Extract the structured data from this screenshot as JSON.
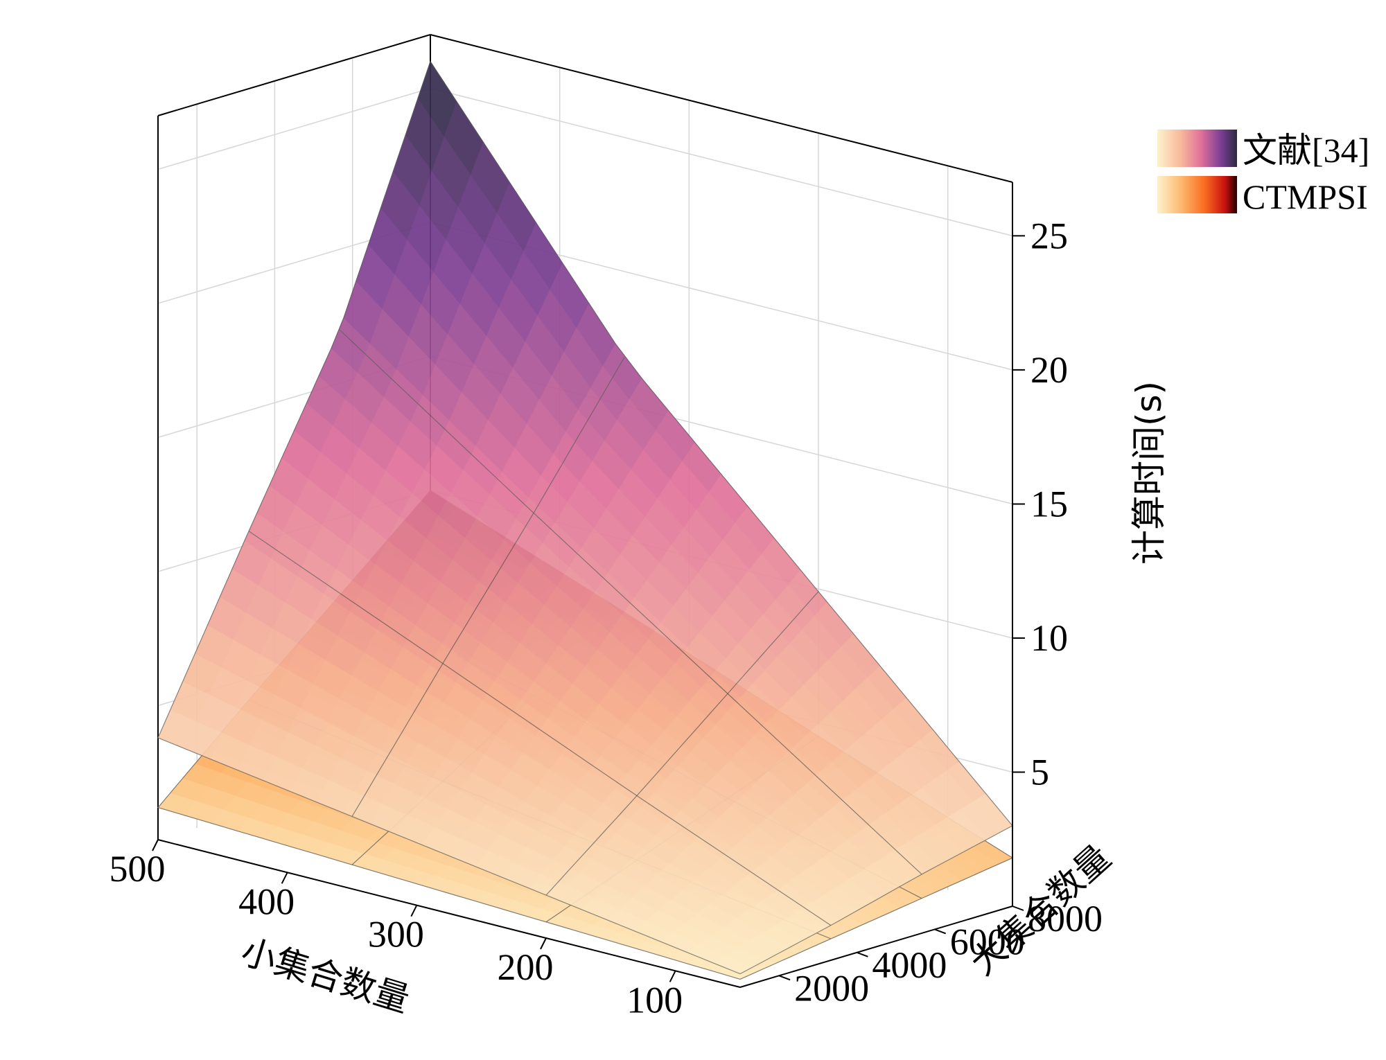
{
  "chart_data": {
    "type": "surface3d",
    "title": "",
    "x_axis": {
      "label": "小集合数量",
      "ticks": [
        "500",
        "400",
        "300",
        "200",
        "100"
      ],
      "tick_values": [
        500,
        400,
        300,
        200,
        100
      ],
      "range": [
        50,
        500
      ]
    },
    "y_axis": {
      "label": "大集合数量",
      "ticks": [
        "2000",
        "4000",
        "6000",
        "8000"
      ],
      "tick_values": [
        2000,
        4000,
        6000,
        8000
      ],
      "range": [
        1000,
        8000
      ]
    },
    "z_axis": {
      "label": "计算时间(s)",
      "ticks": [
        "5",
        "10",
        "15",
        "20",
        "25"
      ],
      "tick_values": [
        5,
        10,
        15,
        20,
        25
      ],
      "range": [
        0,
        27
      ]
    },
    "grid": true,
    "legend_position": "top-right",
    "x": [
      50,
      200,
      350,
      500
    ],
    "y": [
      1000,
      3333,
      5667,
      8000
    ],
    "series": [
      {
        "name": "文献[34]",
        "colormap": [
          "#fdf2cc",
          "#f7b89a",
          "#e0709a",
          "#7b3e94",
          "#2a2a40"
        ],
        "z": [
          [
            0.5,
            1.6,
            2.7,
            3.8
          ],
          [
            1.3,
            4.3,
            7.4,
            10.5
          ],
          [
            2.2,
            7.1,
            12.0,
            17.0
          ],
          [
            3.0,
            9.9,
            16.8,
            26.0
          ]
        ]
      },
      {
        "name": "CTMPSI",
        "colormap": [
          "#fdf2cc",
          "#fdb870",
          "#f96a20",
          "#c81010",
          "#200000"
        ],
        "z": [
          [
            0.3,
            0.6,
            0.9,
            1.2
          ],
          [
            0.8,
            1.9,
            3.0,
            4.2
          ],
          [
            1.3,
            3.2,
            5.2,
            7.1
          ],
          [
            1.8,
            4.5,
            7.3,
            10.0
          ]
        ]
      }
    ]
  }
}
